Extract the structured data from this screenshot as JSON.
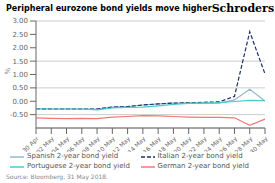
{
  "chart_data": {
    "type": "line",
    "title": "Peripheral eurozone bond yields move higher",
    "y_label": "%",
    "annotations": [
      "Schroders",
      "Source: Bloomberg, 31 May 2018."
    ],
    "categories": [
      "30 Apr",
      "02 May",
      "04 May",
      "06 May",
      "08 May",
      "10 May",
      "12 May",
      "14 May",
      "16 May",
      "18 May",
      "20 May",
      "22 May",
      "24 May",
      "26 May",
      "28 May",
      "30 May"
    ],
    "series": [
      {
        "name": "Spanish 2-year bond yield",
        "color": "#92b8d6",
        "line_style": "solid",
        "values": [
          -0.28,
          -0.29,
          -0.29,
          -0.29,
          -0.29,
          -0.22,
          -0.2,
          -0.14,
          -0.1,
          -0.07,
          -0.06,
          -0.08,
          -0.07,
          0.05,
          0.45,
          0.01
        ]
      },
      {
        "name": "Italian 2-year bond yield",
        "color": "#1a3168",
        "line_style": "dashed",
        "values": [
          -0.28,
          -0.29,
          -0.29,
          -0.29,
          -0.29,
          -0.22,
          -0.2,
          -0.14,
          -0.1,
          -0.07,
          -0.06,
          -0.04,
          -0.02,
          0.18,
          2.6,
          1.02
        ]
      },
      {
        "name": "Portuguese 2-year bond yield",
        "color": "#4dc8cc",
        "line_style": "solid",
        "values": [
          -0.28,
          -0.29,
          -0.29,
          -0.29,
          -0.32,
          -0.25,
          -0.23,
          -0.22,
          -0.17,
          -0.12,
          -0.08,
          -0.06,
          -0.05,
          -0.01,
          0.03,
          0.02
        ]
      },
      {
        "name": "German 2-year bond yield",
        "color": "#f07878",
        "line_style": "solid",
        "values": [
          -0.62,
          -0.64,
          -0.65,
          -0.64,
          -0.65,
          -0.59,
          -0.57,
          -0.54,
          -0.55,
          -0.57,
          -0.59,
          -0.6,
          -0.6,
          -0.62,
          -0.9,
          -0.67
        ]
      }
    ],
    "ylim": [
      -1.0,
      3.0
    ],
    "yticks": [
      {
        "value": -0.5,
        "label": "-0.50"
      },
      {
        "value": 0,
        "label": "0.00"
      },
      {
        "value": 0.5,
        "label": "0.50"
      },
      {
        "value": 1,
        "label": "1.00"
      },
      {
        "value": 1.5,
        "label": "1.50"
      },
      {
        "value": 2,
        "label": "2.00"
      },
      {
        "value": 2.5,
        "label": "2.50"
      },
      {
        "value": 3,
        "label": "3.00"
      }
    ],
    "grid": true,
    "legend": "bottom"
  }
}
